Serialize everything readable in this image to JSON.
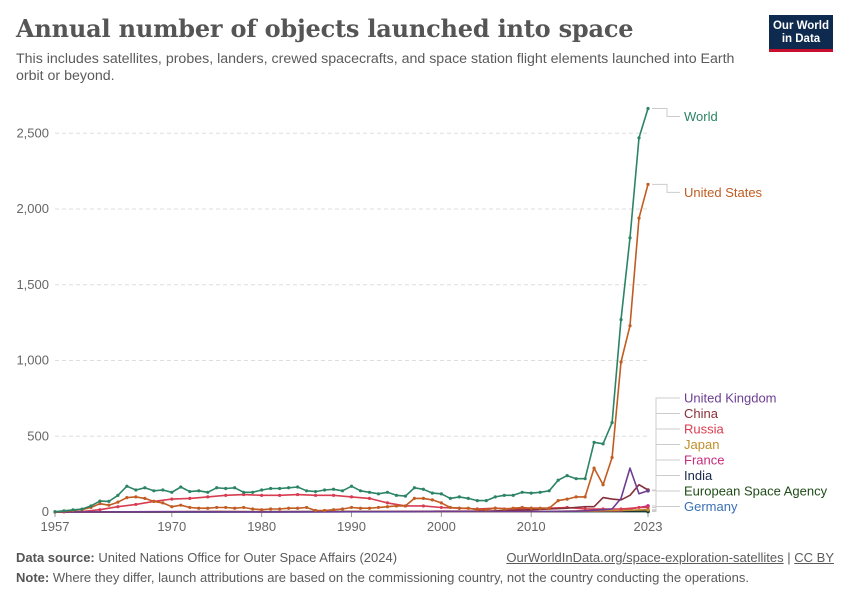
{
  "header": {
    "title": "Annual number of objects launched into space",
    "subtitle": "This includes satellites, probes, landers, crewed spacecrafts, and space station flight elements launched into Earth orbit or beyond.",
    "logo_line1": "Our World",
    "logo_line2": "in Data"
  },
  "footer": {
    "source_label": "Data source:",
    "source_text": "United Nations Office for Outer Space Affairs (2024)",
    "url": "OurWorldInData.org/space-exploration-satellites",
    "separator": "|",
    "license": "CC BY",
    "note_label": "Note:",
    "note_text": "Where they differ, launch attributions are based on the commissioning country, not the country conducting the operations."
  },
  "chart_data": {
    "type": "line",
    "xlim": [
      1957,
      2023
    ],
    "ylim": [
      0,
      2700
    ],
    "x_ticks": [
      1957,
      1970,
      1980,
      1990,
      2000,
      2010,
      2023
    ],
    "y_ticks": [
      0,
      500,
      1000,
      1500,
      2000,
      2500
    ],
    "y_tick_labels": [
      "0",
      "500",
      "1,000",
      "1,500",
      "2,000",
      "2,500"
    ],
    "grid": "horizontal dashed",
    "legend": "right, labels at line ends",
    "series": [
      {
        "name": "World",
        "color": "#2c8465",
        "x": [
          1957,
          1958,
          1959,
          1960,
          1961,
          1962,
          1963,
          1964,
          1965,
          1966,
          1967,
          1968,
          1969,
          1970,
          1971,
          1972,
          1973,
          1974,
          1975,
          1976,
          1977,
          1978,
          1979,
          1980,
          1981,
          1982,
          1983,
          1984,
          1985,
          1986,
          1987,
          1988,
          1989,
          1990,
          1991,
          1992,
          1993,
          1994,
          1995,
          1996,
          1997,
          1998,
          1999,
          2000,
          2001,
          2002,
          2003,
          2004,
          2005,
          2006,
          2007,
          2008,
          2009,
          2010,
          2011,
          2012,
          2013,
          2014,
          2015,
          2016,
          2017,
          2018,
          2019,
          2020,
          2021,
          2022,
          2023
        ],
        "y": [
          2,
          8,
          14,
          19,
          40,
          72,
          70,
          110,
          170,
          145,
          160,
          140,
          145,
          130,
          165,
          135,
          140,
          130,
          160,
          155,
          160,
          130,
          130,
          145,
          155,
          155,
          160,
          165,
          140,
          135,
          145,
          150,
          140,
          170,
          140,
          130,
          120,
          130,
          110,
          105,
          160,
          150,
          125,
          120,
          90,
          100,
          90,
          75,
          75,
          100,
          110,
          110,
          130,
          125,
          130,
          140,
          210,
          240,
          220,
          220,
          460,
          450,
          590,
          1270,
          1810,
          2470,
          2664
        ]
      },
      {
        "name": "United States",
        "color": "#c15c22",
        "x": [
          1957,
          1958,
          1959,
          1960,
          1961,
          1962,
          1963,
          1964,
          1965,
          1966,
          1967,
          1968,
          1969,
          1970,
          1971,
          1972,
          1973,
          1974,
          1975,
          1976,
          1977,
          1978,
          1979,
          1980,
          1981,
          1982,
          1983,
          1984,
          1985,
          1986,
          1987,
          1988,
          1989,
          1990,
          1991,
          1992,
          1993,
          1994,
          1995,
          1996,
          1997,
          1998,
          1999,
          2000,
          2001,
          2002,
          2003,
          2004,
          2005,
          2006,
          2007,
          2008,
          2009,
          2010,
          2011,
          2012,
          2013,
          2014,
          2015,
          2016,
          2017,
          2018,
          2019,
          2020,
          2021,
          2022,
          2023
        ],
        "y": [
          0,
          5,
          10,
          16,
          30,
          55,
          45,
          65,
          95,
          100,
          90,
          70,
          60,
          35,
          45,
          30,
          25,
          25,
          30,
          30,
          25,
          30,
          20,
          15,
          20,
          20,
          25,
          25,
          30,
          10,
          10,
          15,
          20,
          30,
          25,
          25,
          30,
          35,
          40,
          40,
          90,
          90,
          80,
          60,
          30,
          25,
          25,
          15,
          15,
          25,
          20,
          25,
          30,
          25,
          25,
          25,
          75,
          85,
          100,
          100,
          290,
          180,
          360,
          990,
          1230,
          1940,
          2163
        ]
      },
      {
        "name": "United Kingdom",
        "color": "#6d3e91",
        "x": [
          1957,
          1965,
          1970,
          1975,
          1980,
          1985,
          1990,
          1995,
          2000,
          2005,
          2010,
          2015,
          2016,
          2017,
          2018,
          2019,
          2020,
          2021,
          2022,
          2023
        ],
        "y": [
          0,
          1,
          2,
          1,
          1,
          1,
          2,
          2,
          3,
          3,
          3,
          5,
          8,
          12,
          15,
          20,
          90,
          290,
          120,
          140
        ]
      },
      {
        "name": "China",
        "color": "#883039",
        "x": [
          1957,
          1970,
          1975,
          1980,
          1985,
          1990,
          1995,
          2000,
          2005,
          2010,
          2012,
          2014,
          2016,
          2017,
          2018,
          2019,
          2020,
          2021,
          2022,
          2023
        ],
        "y": [
          0,
          1,
          3,
          1,
          2,
          2,
          2,
          5,
          5,
          15,
          20,
          25,
          35,
          35,
          95,
          85,
          80,
          110,
          180,
          145
        ]
      },
      {
        "name": "Russia",
        "color": "#d73c50",
        "x": [
          1957,
          1958,
          1960,
          1962,
          1964,
          1966,
          1968,
          1970,
          1972,
          1974,
          1976,
          1978,
          1980,
          1982,
          1984,
          1986,
          1988,
          1990,
          1992,
          1994,
          1996,
          1998,
          2000,
          2002,
          2004,
          2006,
          2008,
          2010,
          2012,
          2014,
          2016,
          2018,
          2020,
          2022,
          2023
        ],
        "y": [
          1,
          1,
          3,
          15,
          35,
          50,
          70,
          85,
          90,
          100,
          110,
          115,
          110,
          110,
          115,
          110,
          110,
          100,
          90,
          60,
          40,
          40,
          30,
          25,
          20,
          25,
          20,
          25,
          25,
          30,
          20,
          20,
          20,
          30,
          30
        ]
      },
      {
        "name": "Japan",
        "color": "#be8e2a",
        "x": [
          1957,
          1970,
          1975,
          1980,
          1985,
          1990,
          1995,
          2000,
          2005,
          2010,
          2015,
          2020,
          2023
        ],
        "y": [
          0,
          1,
          3,
          3,
          2,
          4,
          3,
          3,
          3,
          3,
          6,
          10,
          15
        ]
      },
      {
        "name": "France",
        "color": "#c62b7c",
        "x": [
          1957,
          1965,
          1970,
          1980,
          1990,
          1995,
          2000,
          2005,
          2010,
          2015,
          2020,
          2021,
          2022,
          2023
        ],
        "y": [
          0,
          1,
          2,
          1,
          2,
          3,
          3,
          3,
          3,
          5,
          8,
          20,
          30,
          40
        ]
      },
      {
        "name": "India",
        "color": "#18294c",
        "x": [
          1957,
          1975,
          1980,
          1990,
          2000,
          2010,
          2015,
          2020,
          2023
        ],
        "y": [
          0,
          1,
          1,
          2,
          2,
          3,
          5,
          5,
          10
        ]
      },
      {
        "name": "European Space Agency",
        "color": "#1f4c17",
        "x": [
          1957,
          1975,
          1985,
          1995,
          2005,
          2015,
          2020,
          2023
        ],
        "y": [
          0,
          1,
          2,
          3,
          3,
          4,
          3,
          3
        ]
      },
      {
        "name": "Germany",
        "color": "#3a6fb4",
        "x": [
          1957,
          1970,
          1990,
          2000,
          2010,
          2020,
          2023
        ],
        "y": [
          0,
          0,
          1,
          2,
          2,
          3,
          3
        ]
      }
    ]
  }
}
